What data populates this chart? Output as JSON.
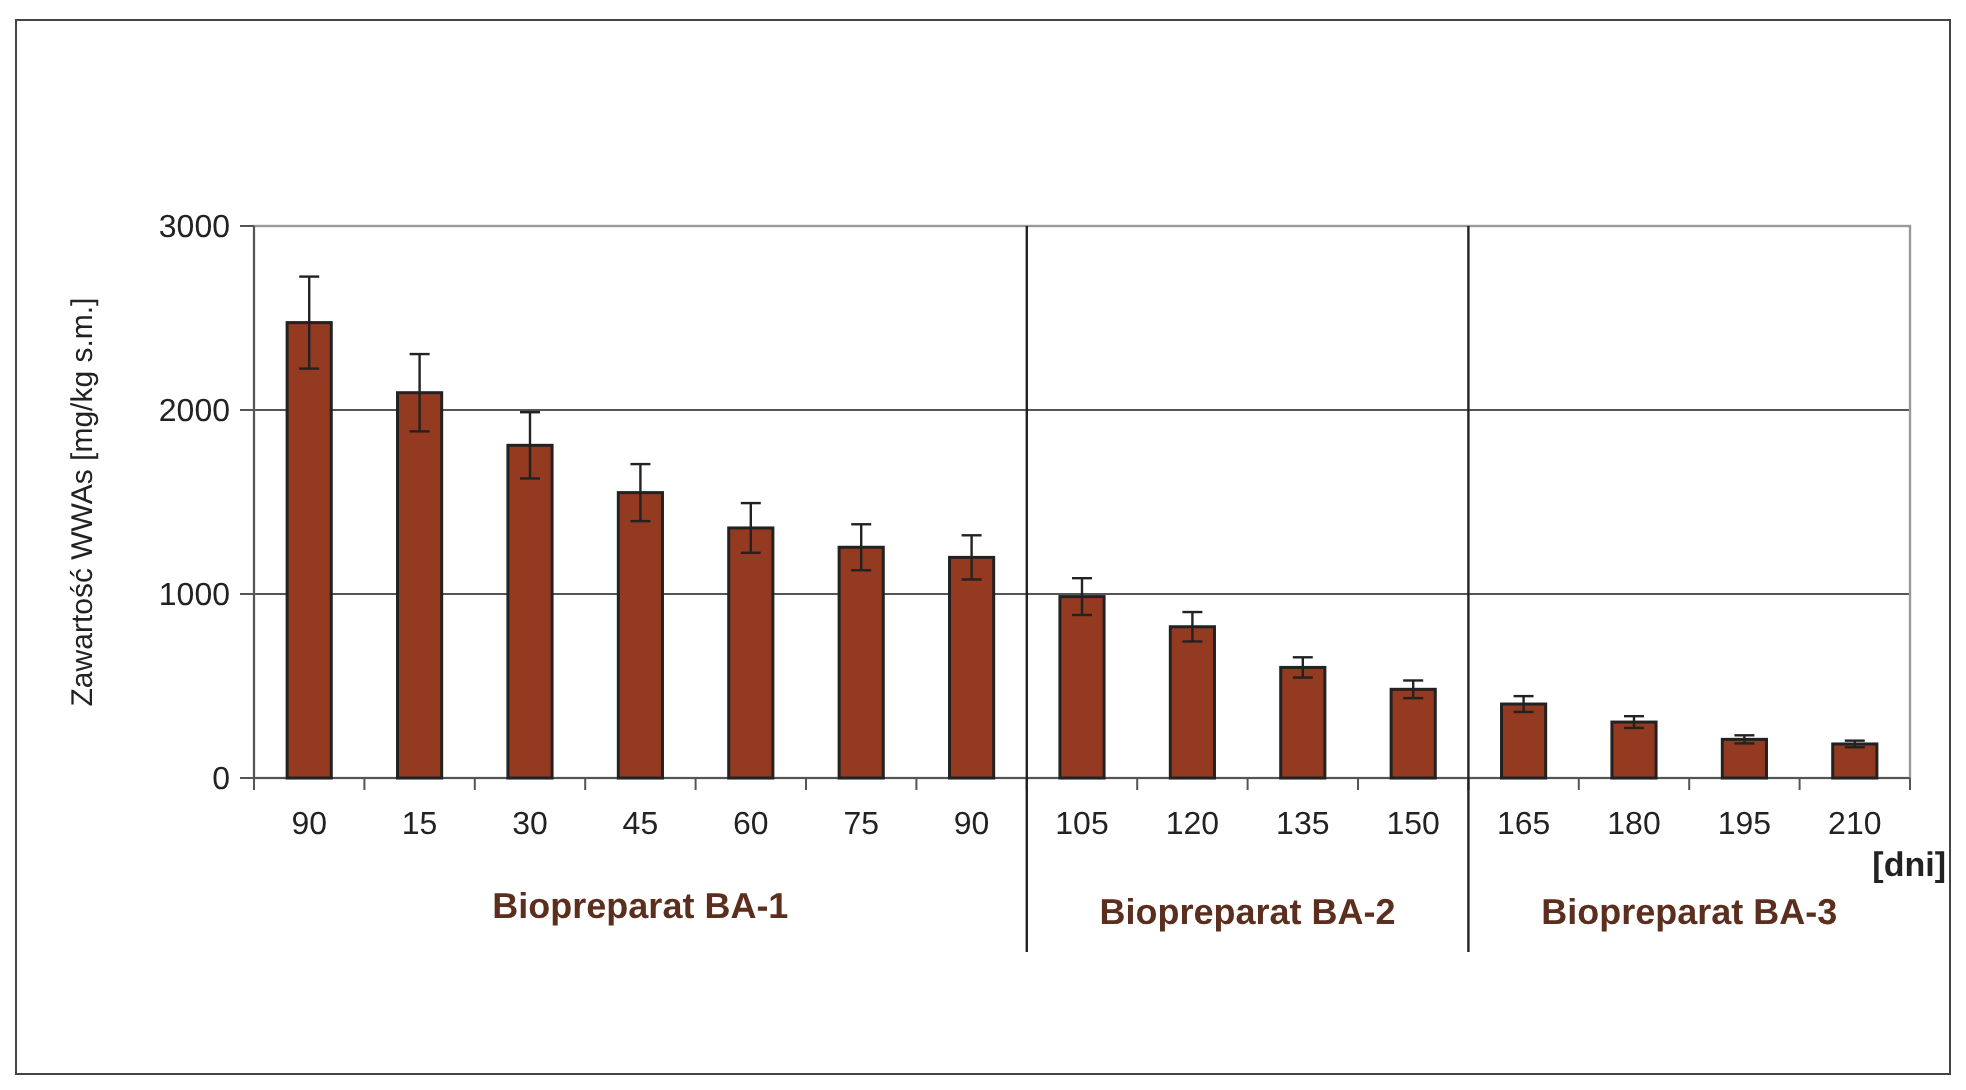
{
  "chart_data": {
    "type": "bar",
    "ylabel": "Zawartość WWAs [mg/kg s.m.]",
    "xlabel": "[dni]",
    "categories": [
      "90",
      "15",
      "30",
      "45",
      "60",
      "75",
      "90",
      "105",
      "120",
      "135",
      "150",
      "165",
      "180",
      "195",
      "210"
    ],
    "values": [
      2475,
      2094,
      1808,
      1551,
      1359,
      1254,
      1199,
      986,
      822,
      601,
      482,
      402,
      304,
      210,
      185
    ],
    "errors": [
      250,
      210,
      180,
      155,
      135,
      125,
      120,
      100,
      80,
      55,
      48,
      43,
      32,
      22,
      18
    ],
    "color": "#943a20",
    "ylim": [
      0,
      3000
    ],
    "yticks": [
      0,
      1000,
      2000,
      3000
    ],
    "grid": "y",
    "annotations": [
      "Biopreparat BA-1",
      "Biopreparat BA-2",
      "Biopreparat BA-3"
    ]
  }
}
